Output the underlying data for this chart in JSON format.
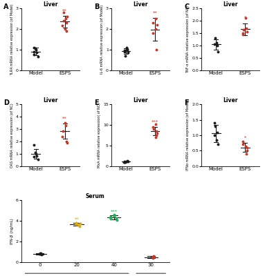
{
  "panel_A": {
    "title": "Liver",
    "ylabel": "TLR4 mRNA relative expression (of Model)",
    "xlabel_groups": [
      "Model",
      "ESPS"
    ],
    "model_points": [
      1.05,
      0.65,
      0.85,
      1.0,
      0.9,
      0.75,
      1.1
    ],
    "esps_points": [
      2.3,
      2.0,
      2.5,
      2.15,
      2.6,
      1.9,
      2.4,
      2.8
    ],
    "model_mean": 0.9,
    "model_sd": 0.18,
    "esps_mean": 2.35,
    "esps_sd": 0.28,
    "ylim": [
      0,
      3
    ],
    "yticks": [
      0,
      1,
      2,
      3
    ],
    "significance": "**"
  },
  "panel_B": {
    "title": "Liver",
    "ylabel": "IL-6 mRNA relative expression (of Model)",
    "xlabel_groups": [
      "Model",
      "ESPS"
    ],
    "model_points": [
      0.7,
      0.85,
      1.0,
      1.1,
      0.95,
      0.9
    ],
    "esps_points": [
      2.3,
      1.0,
      2.5,
      2.0,
      1.8,
      2.2
    ],
    "model_mean": 0.92,
    "model_sd": 0.14,
    "esps_mean": 1.97,
    "esps_sd": 0.55,
    "ylim": [
      0,
      3
    ],
    "yticks": [
      0,
      1,
      2,
      3
    ],
    "significance": "**"
  },
  "panel_C": {
    "title": "Liver",
    "ylabel": "TNF-α mRNA relative expression (of NC)",
    "xlabel_groups": [
      "Model",
      "ESPS"
    ],
    "model_points": [
      1.3,
      0.75,
      1.0,
      1.1,
      1.05
    ],
    "esps_points": [
      1.65,
      1.45,
      1.55,
      2.1,
      1.7,
      1.5
    ],
    "model_mean": 1.04,
    "model_sd": 0.2,
    "esps_mean": 1.66,
    "esps_sd": 0.24,
    "ylim": [
      0.0,
      2.5
    ],
    "yticks": [
      0.0,
      0.5,
      1.0,
      1.5,
      2.0,
      2.5
    ],
    "significance": "*"
  },
  "panel_D": {
    "title": "Liver",
    "ylabel": "OAS mRNA relative expression (of NC)",
    "xlabel_groups": [
      "Model",
      "ESPS"
    ],
    "model_points": [
      1.1,
      0.55,
      0.85,
      1.0,
      0.75,
      1.7
    ],
    "esps_points": [
      2.85,
      2.0,
      3.5,
      3.3,
      2.4,
      1.9
    ],
    "model_mean": 1.0,
    "model_sd": 0.38,
    "esps_mean": 2.83,
    "esps_sd": 0.6,
    "ylim": [
      0,
      5
    ],
    "yticks": [
      0,
      1,
      2,
      3,
      4,
      5
    ],
    "significance": "**"
  },
  "panel_E": {
    "title": "Liver",
    "ylabel": "MxA mRNA relative expression( of NC)",
    "xlabel_groups": [
      "Model",
      "ESPS"
    ],
    "model_points": [
      1.0,
      1.1,
      1.3,
      1.2,
      0.9,
      1.15,
      0.95
    ],
    "esps_points": [
      8.5,
      7.0,
      10.2,
      9.5,
      8.0,
      7.5,
      9.0
    ],
    "model_mean": 1.09,
    "model_sd": 0.14,
    "esps_mean": 8.5,
    "esps_sd": 1.0,
    "ylim": [
      0,
      15
    ],
    "yticks": [
      0,
      5,
      10,
      15
    ],
    "significance": "***"
  },
  "panel_F": {
    "title": "Liver",
    "ylabel": "IFNα mRNA relative expression (of Model)",
    "xlabel_groups": [
      "Model",
      "ESPS"
    ],
    "model_points": [
      1.3,
      0.7,
      1.1,
      0.85,
      1.4,
      1.0
    ],
    "esps_points": [
      0.8,
      0.5,
      0.65,
      0.4,
      0.7,
      0.6
    ],
    "model_mean": 1.06,
    "model_sd": 0.28,
    "esps_mean": 0.61,
    "esps_sd": 0.15,
    "ylim": [
      0.0,
      2.0
    ],
    "yticks": [
      0.0,
      0.5,
      1.0,
      1.5,
      2.0
    ],
    "significance": "*"
  },
  "panel_G": {
    "title": "Serum",
    "ylabel": "IFN-β (ng/mL)",
    "xlabel_groups": [
      "0",
      "20",
      "40",
      "30"
    ],
    "group0_points": [
      0.8,
      0.75,
      0.85,
      0.9,
      0.78
    ],
    "group20_points": [
      3.6,
      3.8,
      3.5,
      3.75,
      3.65
    ],
    "group40_points": [
      4.3,
      4.5,
      4.6,
      4.1,
      4.4,
      4.2,
      4.35
    ],
    "group30_points": [
      0.5,
      0.45,
      0.6,
      0.55,
      0.42
    ],
    "group0_mean": 0.82,
    "group0_sd": 0.06,
    "group20_mean": 3.68,
    "group20_sd": 0.12,
    "group40_mean": 4.35,
    "group40_sd": 0.18,
    "group30_mean": 0.5,
    "group30_sd": 0.07,
    "ylim": [
      0,
      6
    ],
    "yticks": [
      0,
      2,
      4,
      6
    ],
    "sig20": "**",
    "sig40": "***"
  },
  "colors": {
    "black": "#1a1a1a",
    "red": "#c0392b",
    "yellow": "#d4ac0d",
    "green": "#27ae60",
    "mean_line": "#1a1a1a"
  }
}
